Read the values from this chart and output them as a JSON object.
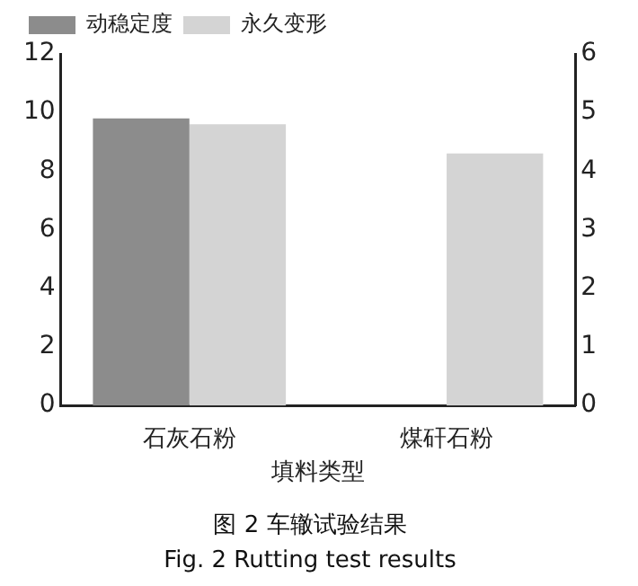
{
  "chart_data": {
    "type": "bar",
    "title": "图 2 车辙试验结果",
    "subtitle": "Fig. 2 Rutting test results",
    "xlabel": "填料类型",
    "categories": [
      "石灰石粉",
      "煤矸石粉"
    ],
    "series": [
      {
        "name": "动稳定度",
        "color": "#8c8c8c",
        "values": [
          9.8,
          null
        ]
      },
      {
        "name": "永久变形",
        "color": "#d4d4d4",
        "values": [
          4.8,
          4.3
        ],
        "axis": "y2"
      }
    ],
    "ylim": [
      0,
      12
    ],
    "yticks": [
      0,
      2,
      4,
      6,
      8,
      10,
      12
    ],
    "y2lim": [
      0,
      6
    ],
    "y2ticks": [
      0,
      1,
      2,
      3,
      4,
      5,
      6
    ],
    "legend": "top left",
    "grid": false
  }
}
